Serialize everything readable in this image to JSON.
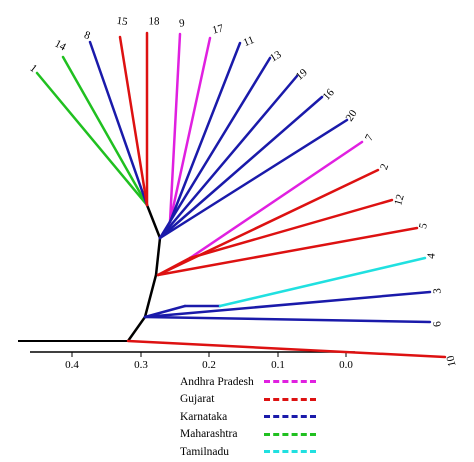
{
  "axis": {
    "ticks": [
      "0.4",
      "0.3",
      "0.2",
      "0.1",
      "0.0"
    ]
  },
  "tips": [
    {
      "label": "1",
      "region": "maharashtra"
    },
    {
      "label": "14",
      "region": "maharashtra"
    },
    {
      "label": "8",
      "region": "karnataka"
    },
    {
      "label": "15",
      "region": "gujarat"
    },
    {
      "label": "18",
      "region": "gujarat"
    },
    {
      "label": "9",
      "region": "andhra"
    },
    {
      "label": "17",
      "region": "andhra"
    },
    {
      "label": "11",
      "region": "karnataka"
    },
    {
      "label": "13",
      "region": "karnataka"
    },
    {
      "label": "19",
      "region": "karnataka"
    },
    {
      "label": "16",
      "region": "karnataka"
    },
    {
      "label": "20",
      "region": "karnataka"
    },
    {
      "label": "7",
      "region": "andhra"
    },
    {
      "label": "2",
      "region": "gujarat"
    },
    {
      "label": "12",
      "region": "gujarat"
    },
    {
      "label": "5",
      "region": "gujarat"
    },
    {
      "label": "4",
      "region": "tamilnadu"
    },
    {
      "label": "3",
      "region": "karnataka"
    },
    {
      "label": "6",
      "region": "karnataka"
    },
    {
      "label": "10",
      "region": "gujarat"
    }
  ],
  "legend": [
    {
      "key": "andhra",
      "label": "Andhra Pradesh",
      "color": "#e020e0"
    },
    {
      "key": "gujarat",
      "label": "Gujarat",
      "color": "#dd1111"
    },
    {
      "key": "karnataka",
      "label": "Karnataka",
      "color": "#1a1aaa"
    },
    {
      "key": "maharashtra",
      "label": "Maharashtra",
      "color": "#20c020"
    },
    {
      "key": "tamilnadu",
      "label": "Tamilnadu",
      "color": "#20e0e0"
    }
  ]
}
